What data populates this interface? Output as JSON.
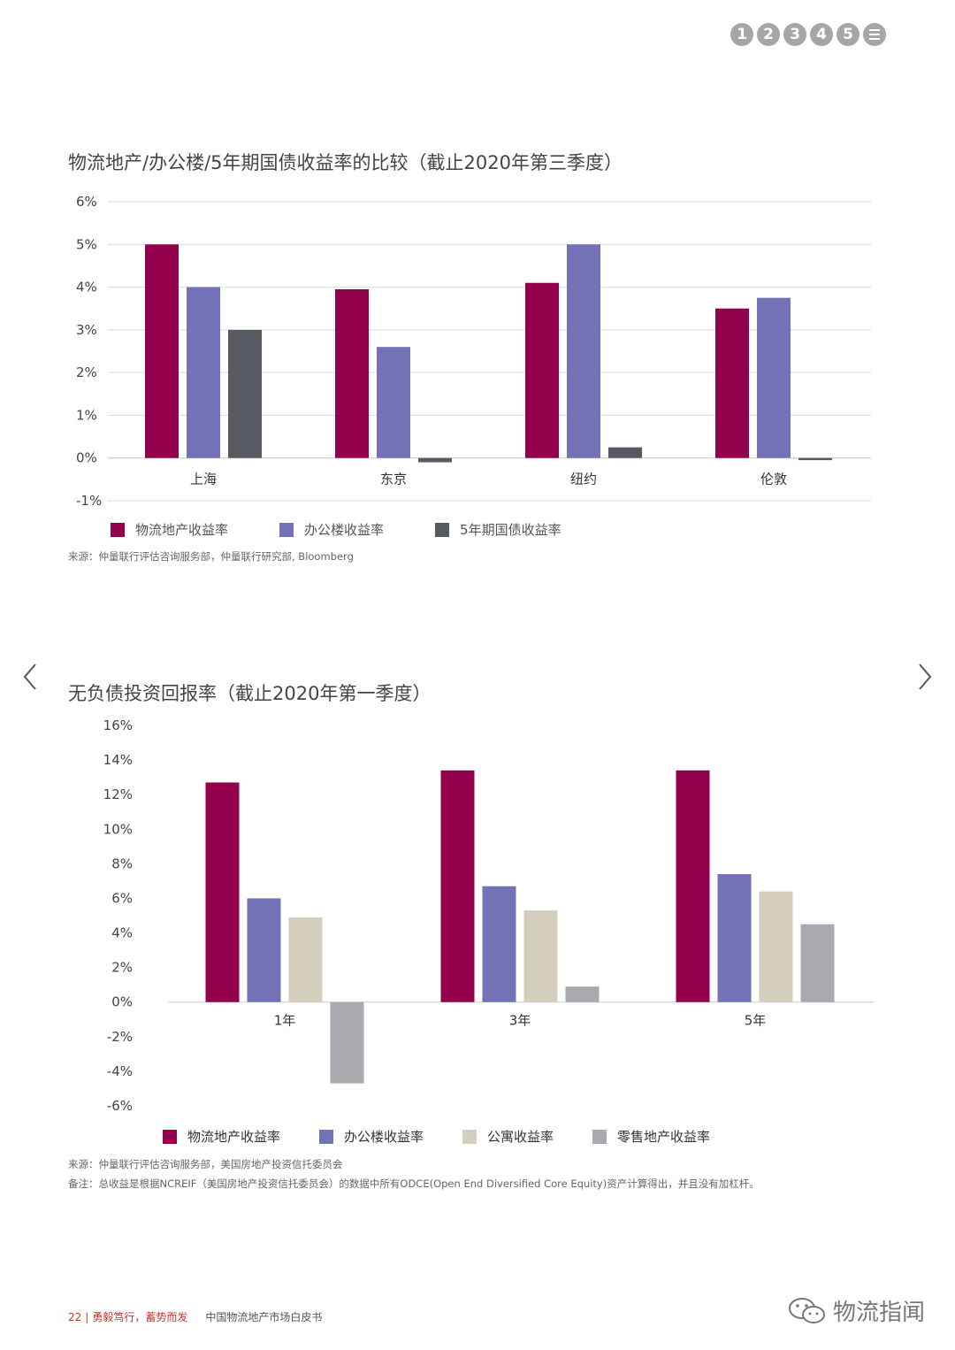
{
  "nav": {
    "items": [
      "1",
      "2",
      "3",
      "4",
      "5"
    ],
    "menu_icon": "menu-icon"
  },
  "colors": {
    "logistics": "#93004b",
    "office": "#7372b7",
    "bond": "#575a60",
    "apartment": "#d4cfbd",
    "retail": "#a9aaad",
    "grid": "#d9d9d9",
    "accent": "#c0392b"
  },
  "chart1": {
    "title": "物流地产/办公楼/5年期国债收益率的比较（截止2020年第三季度）",
    "source": "来源：仲量联行评估咨询服务部，仲量联行研究部, Bloomberg",
    "legend": [
      "物流地产收益率",
      "办公楼收益率",
      "5年期国债收益率"
    ]
  },
  "chart2": {
    "title": "无负债投资回报率（截止2020年第一季度）",
    "source": "来源：仲量联行评估咨询服务部，美国房地产投资信托委员会",
    "note": "备注：总收益是根据NCREIF（美国房地产投资信托委员会）的数据中所有ODCE(Open End Diversified Core Equity)资产计算得出，并且没有加杠杆。",
    "legend": [
      "物流地产收益率",
      "办公楼收益率",
      "公寓收益率",
      "零售地产收益率"
    ]
  },
  "chart_data": [
    {
      "type": "bar",
      "title": "物流地产/办公楼/5年期国债收益率的比较（截止2020年第三季度）",
      "categories": [
        "上海",
        "东京",
        "纽约",
        "伦敦"
      ],
      "series": [
        {
          "name": "物流地产收益率",
          "values": [
            5.0,
            3.95,
            4.1,
            3.5
          ]
        },
        {
          "name": "办公楼收益率",
          "values": [
            4.0,
            2.6,
            5.0,
            3.75
          ]
        },
        {
          "name": "5年期国债收益率",
          "values": [
            3.0,
            -0.1,
            0.25,
            -0.05
          ]
        }
      ],
      "y_ticks": [
        "6%",
        "5%",
        "4%",
        "3%",
        "2%",
        "1%",
        "0%",
        "-1%"
      ],
      "ylim": [
        -1,
        6
      ],
      "grid": true,
      "legend_position": "bottom"
    },
    {
      "type": "bar",
      "title": "无负债投资回报率（截止2020年第一季度）",
      "categories": [
        "1年",
        "3年",
        "5年"
      ],
      "series": [
        {
          "name": "物流地产收益率",
          "values": [
            12.7,
            13.4,
            13.4
          ]
        },
        {
          "name": "办公楼收益率",
          "values": [
            6.0,
            6.7,
            7.4
          ]
        },
        {
          "name": "公寓收益率",
          "values": [
            4.9,
            5.3,
            6.4
          ]
        },
        {
          "name": "零售地产收益率",
          "values": [
            -4.7,
            0.9,
            4.5
          ]
        }
      ],
      "y_ticks": [
        "16%",
        "14%",
        "12%",
        "10%",
        "8%",
        "6%",
        "4%",
        "2%",
        "0%",
        "-2%",
        "-4%",
        "-6%"
      ],
      "ylim": [
        -6,
        16
      ],
      "grid": false,
      "legend_position": "bottom"
    }
  ],
  "footer": {
    "page": "22",
    "slogan": "勇毅笃行，蓄势而发",
    "doc_title": "中国物流地产市场白皮书"
  },
  "watermark": {
    "text": "物流指闻",
    "icon": "wechat-icon"
  }
}
